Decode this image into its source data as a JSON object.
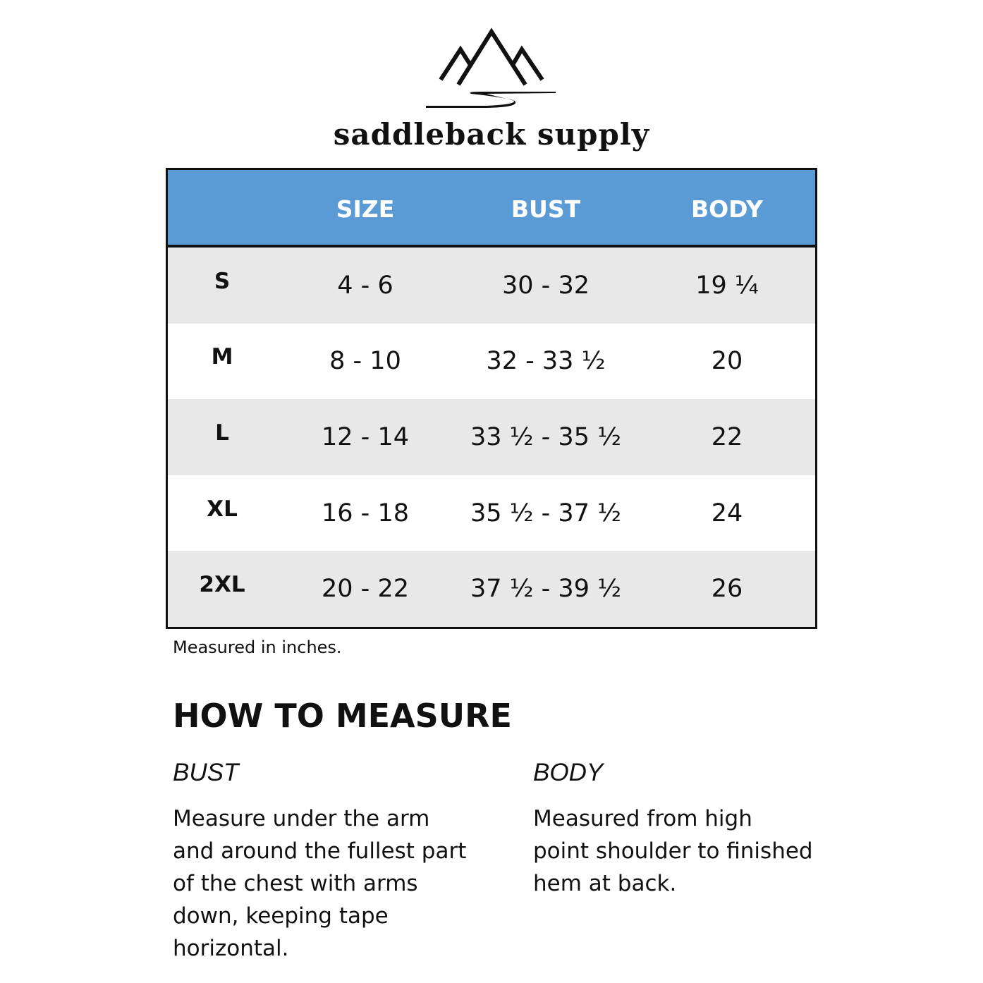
{
  "brand": {
    "name": "saddleback supply",
    "logo_icon": "mountains-river-logo"
  },
  "table": {
    "header_color": "#5b9bd5",
    "columns": [
      "",
      "SIZE",
      "BUST",
      "BODY"
    ],
    "rows": [
      {
        "label": "S",
        "size": "4 - 6",
        "bust": "30 - 32",
        "body": "19 ¼"
      },
      {
        "label": "M",
        "size": "8 - 10",
        "bust": "32 -  33 ½",
        "body": "20"
      },
      {
        "label": "L",
        "size": "12 - 14",
        "bust": "33 ½ - 35 ½",
        "body": "22"
      },
      {
        "label": "XL",
        "size": "16 - 18",
        "bust": "35 ½ - 37 ½",
        "body": "24"
      },
      {
        "label": "2XL",
        "size": "20 - 22",
        "bust": "37 ½ - 39 ½",
        "body": "26"
      }
    ]
  },
  "note": "Measured in inches.",
  "how_to": {
    "title": "HOW TO MEASURE",
    "bust": {
      "heading": "BUST",
      "lines": [
        "Measure under the arm",
        "and around the fullest part",
        "of the chest with arms",
        "down, keeping tape",
        "horizontal."
      ]
    },
    "body": {
      "heading": "BODY",
      "lines": [
        "Measured from high",
        "point shoulder to finished",
        "hem at back."
      ]
    }
  }
}
